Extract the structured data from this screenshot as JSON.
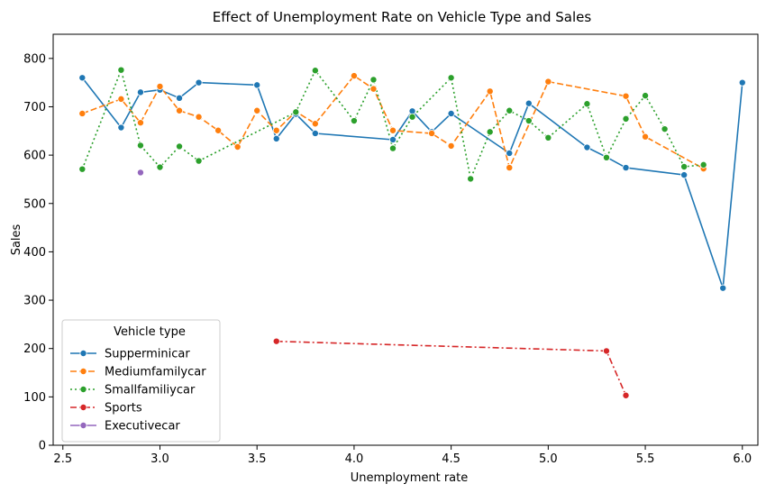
{
  "chart_data": {
    "type": "line",
    "title": "Effect of Unemployment Rate on Vehicle Type and Sales",
    "xlabel": "Unemployment rate",
    "ylabel": "Sales",
    "xlim": [
      2.45,
      6.08
    ],
    "ylim": [
      0,
      850
    ],
    "xticks": [
      2.5,
      3.0,
      3.5,
      4.0,
      4.5,
      5.0,
      5.5,
      6.0
    ],
    "xtick_labels": [
      "2.5",
      "3.0",
      "3.5",
      "4.0",
      "4.5",
      "5.0",
      "5.5",
      "6.0"
    ],
    "yticks": [
      0,
      100,
      200,
      300,
      400,
      500,
      600,
      700,
      800
    ],
    "ytick_labels": [
      "0",
      "100",
      "200",
      "300",
      "400",
      "500",
      "600",
      "700",
      "800"
    ],
    "grid": false,
    "legend": {
      "title": "Vehicle type",
      "placement": "lower-left"
    },
    "series": [
      {
        "name": "Supperminicar",
        "color": "#1f77b4",
        "dash": "solid",
        "x": [
          2.6,
          2.8,
          2.9,
          3.0,
          3.1,
          3.2,
          3.5,
          3.6,
          3.7,
          3.8,
          4.2,
          4.3,
          4.4,
          4.5,
          4.8,
          4.9,
          5.2,
          5.3,
          5.4,
          5.7,
          5.9,
          6.0
        ],
        "values": [
          760,
          657,
          730,
          735,
          718,
          750,
          745,
          634,
          685,
          645,
          632,
          691,
          648,
          686,
          604,
          707,
          616,
          596,
          574,
          559,
          325,
          750
        ]
      },
      {
        "name": "Mediumfamilycar",
        "color": "#ff7f0e",
        "dash": "dashed",
        "x": [
          2.6,
          2.8,
          2.9,
          3.0,
          3.1,
          3.2,
          3.3,
          3.4,
          3.5,
          3.6,
          3.7,
          3.8,
          4.0,
          4.1,
          4.2,
          4.4,
          4.5,
          4.7,
          4.8,
          5.0,
          5.4,
          5.5,
          5.8
        ],
        "values": [
          686,
          716,
          667,
          742,
          692,
          679,
          651,
          617,
          692,
          651,
          690,
          665,
          764,
          737,
          651,
          645,
          619,
          732,
          574,
          752,
          722,
          638,
          572
        ]
      },
      {
        "name": "Smallfamiliycar",
        "color": "#2ca02c",
        "dash": "dotted",
        "x": [
          2.6,
          2.8,
          2.9,
          3.0,
          3.1,
          3.2,
          3.7,
          3.8,
          4.0,
          4.1,
          4.2,
          4.3,
          4.5,
          4.6,
          4.7,
          4.8,
          4.9,
          5.0,
          5.2,
          5.3,
          5.4,
          5.5,
          5.6,
          5.7,
          5.8
        ],
        "values": [
          571,
          776,
          620,
          575,
          618,
          588,
          689,
          775,
          671,
          756,
          614,
          679,
          760,
          551,
          648,
          692,
          671,
          636,
          706,
          595,
          675,
          723,
          654,
          576,
          580
        ]
      },
      {
        "name": "Sports",
        "color": "#d62728",
        "dash": "dashdot",
        "x": [
          3.6,
          5.3,
          5.4
        ],
        "values": [
          215,
          195,
          103
        ]
      },
      {
        "name": "Executivecar",
        "color": "#9467bd",
        "dash": "solid",
        "x": [
          2.9
        ],
        "values": [
          564
        ]
      }
    ]
  }
}
